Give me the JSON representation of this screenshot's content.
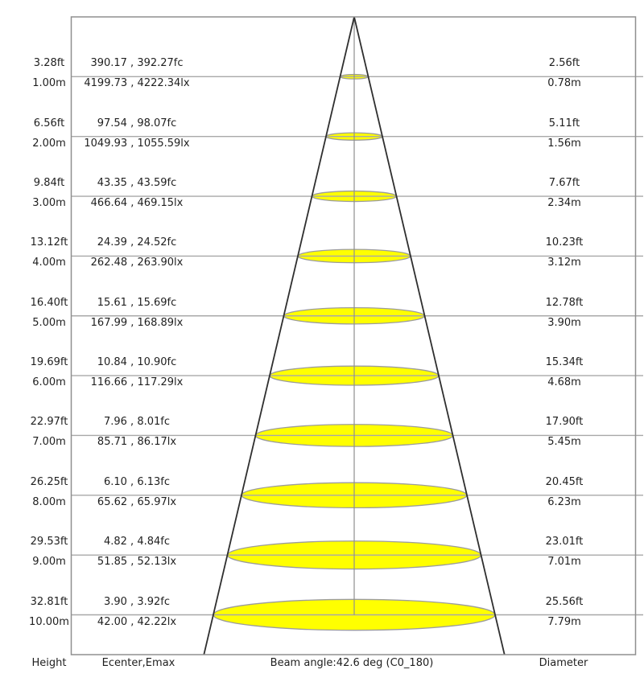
{
  "chart_data": {
    "type": "table",
    "description": "Photometric cone diagram: illuminance and beam diameter versus mounting height",
    "beam_angle_deg": 42.6,
    "beam_angle_label": "Beam angle:42.6 deg (C0_180)",
    "columns": [
      "Height",
      "Ecenter,Emax",
      "Diameter"
    ],
    "units": {
      "height": [
        "ft",
        "m"
      ],
      "illuminance": [
        "fc",
        "lx"
      ],
      "diameter": [
        "ft",
        "m"
      ]
    },
    "rows": [
      {
        "height_ft": 3.28,
        "height_m": 1,
        "ecenter_fc": 390.17,
        "emax_fc": 392.27,
        "ecenter_lx": 4199.73,
        "emax_lx": 4222.34,
        "diameter_ft": 2.56,
        "diameter_m": 0.78
      },
      {
        "height_ft": 6.56,
        "height_m": 2,
        "ecenter_fc": 97.54,
        "emax_fc": 98.07,
        "ecenter_lx": 1049.93,
        "emax_lx": 1055.59,
        "diameter_ft": 5.11,
        "diameter_m": 1.56
      },
      {
        "height_ft": 9.84,
        "height_m": 3,
        "ecenter_fc": 43.35,
        "emax_fc": 43.59,
        "ecenter_lx": 466.64,
        "emax_lx": 469.15,
        "diameter_ft": 7.67,
        "diameter_m": 2.34
      },
      {
        "height_ft": 13.12,
        "height_m": 4,
        "ecenter_fc": 24.39,
        "emax_fc": 24.52,
        "ecenter_lx": 262.48,
        "emax_lx": 263.9,
        "diameter_ft": 10.23,
        "diameter_m": 3.12
      },
      {
        "height_ft": 16.4,
        "height_m": 5,
        "ecenter_fc": 15.61,
        "emax_fc": 15.69,
        "ecenter_lx": 167.99,
        "emax_lx": 168.89,
        "diameter_ft": 12.78,
        "diameter_m": 3.9
      },
      {
        "height_ft": 19.69,
        "height_m": 6,
        "ecenter_fc": 10.84,
        "emax_fc": 10.9,
        "ecenter_lx": 116.66,
        "emax_lx": 117.29,
        "diameter_ft": 15.34,
        "diameter_m": 4.68
      },
      {
        "height_ft": 22.97,
        "height_m": 7,
        "ecenter_fc": 7.96,
        "emax_fc": 8.01,
        "ecenter_lx": 85.71,
        "emax_lx": 86.17,
        "diameter_ft": 17.9,
        "diameter_m": 5.45
      },
      {
        "height_ft": 26.25,
        "height_m": 8,
        "ecenter_fc": 6.1,
        "emax_fc": 6.13,
        "ecenter_lx": 65.62,
        "emax_lx": 65.97,
        "diameter_ft": 20.45,
        "diameter_m": 6.23
      },
      {
        "height_ft": 29.53,
        "height_m": 9,
        "ecenter_fc": 4.82,
        "emax_fc": 4.84,
        "ecenter_lx": 51.85,
        "emax_lx": 52.13,
        "diameter_ft": 23.01,
        "diameter_m": 7.01
      },
      {
        "height_ft": 32.81,
        "height_m": 10,
        "ecenter_fc": 3.9,
        "emax_fc": 3.92,
        "ecenter_lx": 42.0,
        "emax_lx": 42.22,
        "diameter_ft": 25.56,
        "diameter_m": 7.79
      }
    ],
    "colors": {
      "beam_fill": "#ffff00",
      "beam_stroke": "#9c9c9c",
      "row_line": "#a8a8a8",
      "border": "#8f8f8f",
      "center_axis": "#8f8f8f",
      "cone_edge": "#2f2f2f",
      "text": "#1f1f1f",
      "background": "#ffffff"
    }
  }
}
